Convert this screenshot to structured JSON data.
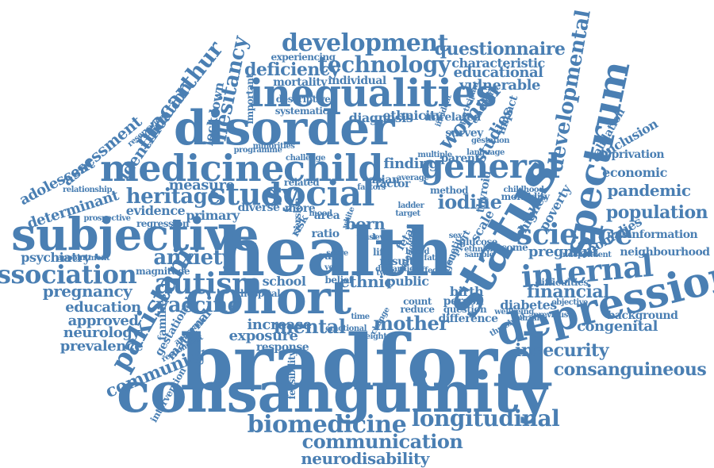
{
  "theme": {
    "word_color": "#4a7fb3",
    "background": "#ffffff"
  },
  "cloud": {
    "words": [
      "bradford",
      "consanguinity",
      "health",
      "cohort",
      "status",
      "disorder",
      "depression",
      "subjective",
      "inequalities",
      "medicine",
      "child",
      "social",
      "general",
      "spectrum",
      "study",
      "internal",
      "science",
      "autism",
      "pakistani",
      "association",
      "development",
      "technology",
      "biomedicine",
      "longitudinal",
      "communication",
      "neurodisability",
      "developmental",
      "macarthur",
      "hesitancy",
      "heritage",
      "anxiety",
      "vaccine",
      "questionnaire",
      "deficiency",
      "educational",
      "vulnerable",
      "woman",
      "studies",
      "born",
      "iodine",
      "population",
      "pandemic",
      "financial",
      "insecurity",
      "consanguineous",
      "mental",
      "mother",
      "community",
      "pregnancy",
      "education",
      "approved",
      "neurology",
      "prevalence",
      "psychiatry",
      "assessment",
      "identification",
      "adolescent",
      "determinant",
      "measure",
      "evidence",
      "increase",
      "exposure",
      "ethnicity",
      "diagnosis",
      "finding",
      "characteristic",
      "mortality",
      "individual",
      "ethnic",
      "school",
      "public",
      "diabetes",
      "congenital",
      "background",
      "economic",
      "conclusion",
      "deprivation",
      "validation",
      "neighbourhood",
      "misinformation",
      "anomalies",
      "pregnant",
      "higher",
      "poverty",
      "primary",
      "maternal",
      "gestational",
      "lockdown",
      "families",
      "experiencing",
      "systematic",
      "descriptive",
      "minorities",
      "programme",
      "relationship",
      "reservation",
      "appointment",
      "magnitude",
      "prospective",
      "regression",
      "unrelated",
      "survey",
      "parent",
      "birth",
      "thyroid",
      "fetal",
      "result",
      "risk",
      "ratio",
      "area",
      "rate",
      "life",
      "scale",
      "factor",
      "asian",
      "method",
      "white",
      "glucose",
      "outcome",
      "difference",
      "person",
      "question",
      "reduce",
      "count",
      "hospital",
      "response",
      "feasibility",
      "intervention",
      "respondent",
      "approach",
      "diverse",
      "related",
      "important",
      "impact",
      "morbidity",
      "difficulties",
      "independent",
      "objective",
      "wellbeing",
      "threshold",
      "change",
      "belief",
      "more",
      "version",
      "trust",
      "level",
      "ladder",
      "genetic",
      "support",
      "ethnicities",
      "sample",
      "childhood",
      "mood",
      "score",
      "year",
      "multiple",
      "challenge",
      "incident",
      "participant",
      "target",
      "examining",
      "gestation",
      "language",
      "average",
      "factors",
      "based",
      "relation",
      "term",
      "fatal",
      "effect",
      "sex",
      "twins",
      "time",
      "emotional",
      "weight",
      "disparities",
      "learning",
      "previous",
      "conclusions",
      "patient"
    ]
  }
}
